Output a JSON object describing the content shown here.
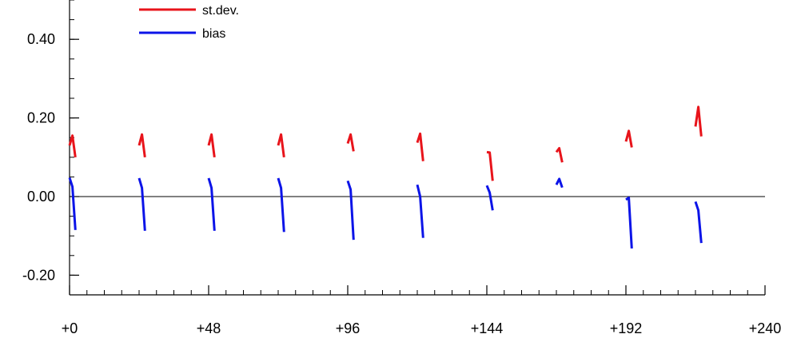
{
  "chart_data": {
    "type": "line",
    "x_range": [
      0,
      240
    ],
    "y_range": [
      -0.25,
      0.5
    ],
    "x_ticks": [
      {
        "value": 0,
        "label": "+0"
      },
      {
        "value": 48,
        "label": "+48"
      },
      {
        "value": 96,
        "label": "+96"
      },
      {
        "value": 144,
        "label": "+144"
      },
      {
        "value": 192,
        "label": "+192"
      },
      {
        "value": 240,
        "label": "+240"
      }
    ],
    "y_ticks": [
      {
        "value": 0.4,
        "label": "0.40"
      },
      {
        "value": 0.2,
        "label": "0.20"
      },
      {
        "value": 0.0,
        "label": "0.00"
      },
      {
        "value": -0.2,
        "label": "-0.20"
      }
    ],
    "x_minor_step": 6,
    "y_minor_step": 0.05,
    "zero_line": true,
    "legend_position": "top-left",
    "series": [
      {
        "name": "st.dev.",
        "color": "#e8141b",
        "segments": [
          [
            [
              0,
              0.13
            ],
            [
              1,
              0.155
            ],
            [
              2,
              0.1
            ]
          ],
          [
            [
              24,
              0.13
            ],
            [
              25,
              0.158
            ],
            [
              26,
              0.1
            ]
          ],
          [
            [
              48,
              0.13
            ],
            [
              49,
              0.158
            ],
            [
              50,
              0.1
            ]
          ],
          [
            [
              72,
              0.13
            ],
            [
              73,
              0.158
            ],
            [
              74,
              0.1
            ]
          ],
          [
            [
              96,
              0.135
            ],
            [
              97,
              0.158
            ],
            [
              98,
              0.115
            ]
          ],
          [
            [
              120,
              0.137
            ],
            [
              121,
              0.16
            ],
            [
              122,
              0.09
            ]
          ],
          [
            [
              144,
              0.113
            ],
            [
              145,
              0.112
            ],
            [
              146,
              0.04
            ]
          ],
          [
            [
              168,
              0.113
            ],
            [
              169,
              0.123
            ],
            [
              170,
              0.087
            ]
          ],
          [
            [
              192,
              0.14
            ],
            [
              193,
              0.167
            ],
            [
              194,
              0.125
            ]
          ],
          [
            [
              216,
              0.178
            ],
            [
              217,
              0.228
            ],
            [
              218,
              0.153
            ]
          ]
        ]
      },
      {
        "name": "bias",
        "color": "#0c14e8",
        "segments": [
          [
            [
              0,
              0.048
            ],
            [
              1,
              0.025
            ],
            [
              2,
              -0.085
            ]
          ],
          [
            [
              24,
              0.047
            ],
            [
              25,
              0.022
            ],
            [
              26,
              -0.087
            ]
          ],
          [
            [
              48,
              0.047
            ],
            [
              49,
              0.022
            ],
            [
              50,
              -0.087
            ]
          ],
          [
            [
              72,
              0.047
            ],
            [
              73,
              0.022
            ],
            [
              74,
              -0.09
            ]
          ],
          [
            [
              96,
              0.04
            ],
            [
              97,
              0.018
            ],
            [
              98,
              -0.11
            ]
          ],
          [
            [
              120,
              0.03
            ],
            [
              121,
              0.0
            ],
            [
              122,
              -0.105
            ]
          ],
          [
            [
              144,
              0.028
            ],
            [
              145,
              0.01
            ],
            [
              146,
              -0.035
            ]
          ],
          [
            [
              168,
              0.03
            ],
            [
              169,
              0.045
            ],
            [
              170,
              0.023
            ]
          ],
          [
            [
              192,
              -0.008
            ],
            [
              193,
              -0.003
            ],
            [
              194,
              -0.132
            ]
          ],
          [
            [
              216,
              -0.013
            ],
            [
              217,
              -0.035
            ],
            [
              218,
              -0.118
            ]
          ]
        ]
      }
    ]
  }
}
